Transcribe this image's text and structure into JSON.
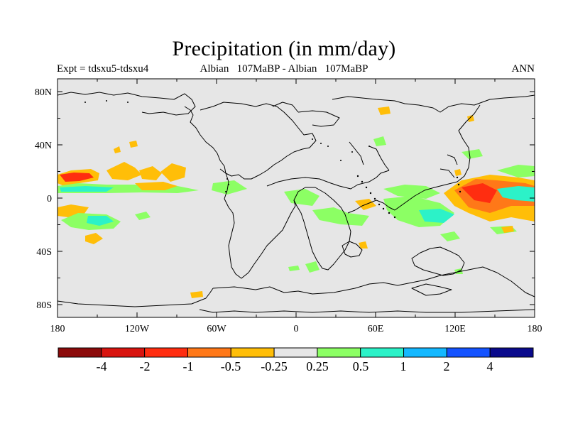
{
  "header": {
    "title": "Precipitation (in mm/day)",
    "left": "Expt = tdsxu5-tdsxu4",
    "center": "Albian   107MaBP - Albian   107MaBP",
    "right": "ANN"
  },
  "map": {
    "lat_ticks": [
      "80N",
      "40N",
      "0",
      "40S",
      "80S"
    ],
    "lon_ticks": [
      "180",
      "120W",
      "60W",
      "0",
      "60E",
      "120E",
      "180"
    ],
    "background_color": "#e6e6e6"
  },
  "colorbar": {
    "labels": [
      "-4",
      "-2",
      "-1",
      "-0.5",
      "-0.25",
      "0.25",
      "0.5",
      "1",
      "2",
      "4"
    ],
    "colors": [
      "#8b0a0a",
      "#d8140f",
      "#ff2d10",
      "#ff7818",
      "#ffbe08",
      "#e6e6e6",
      "#8cff64",
      "#2cf2c8",
      "#14b8ff",
      "#1453ff",
      "#0a0a8c"
    ]
  }
}
